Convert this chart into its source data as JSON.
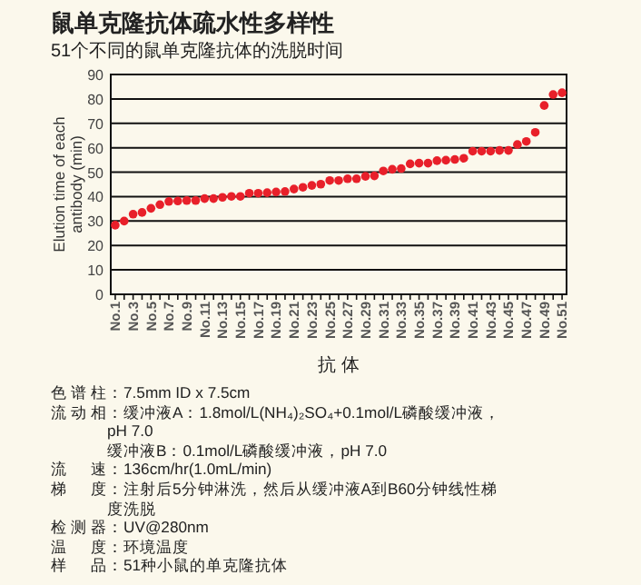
{
  "chart_data": {
    "type": "scatter",
    "title": "鼠单克隆抗体疏水性多样性",
    "subtitle": "51个不同的鼠单克隆抗体的洗脱时间",
    "xlabel": "抗 体",
    "ylabel": "Elution time of each antibody (min)",
    "categories": [
      "No.1",
      null,
      "No.3",
      null,
      "No.5",
      null,
      "No.7",
      null,
      "No.9",
      null,
      "No.11",
      null,
      "No.13",
      null,
      "No.15",
      null,
      "No.17",
      null,
      "No.19",
      null,
      "No.21",
      null,
      "No.23",
      null,
      "No.25",
      null,
      "No.27",
      null,
      "No.29",
      null,
      "No.31",
      null,
      "No.33",
      null,
      "No.35",
      null,
      "No.37",
      null,
      "No.39",
      null,
      "No.41",
      null,
      "No.43",
      null,
      "No.45",
      null,
      "No.47",
      null,
      "No.49",
      null,
      "No.51"
    ],
    "values": [
      28.3,
      30,
      32.8,
      33.5,
      35.2,
      36.7,
      38,
      38.2,
      38.4,
      38.4,
      39.2,
      39.2,
      39.7,
      40.1,
      40.1,
      41.4,
      41.4,
      41.6,
      41.9,
      42.1,
      43.1,
      43.8,
      44.6,
      45.1,
      46.6,
      46.6,
      47.3,
      47.3,
      48.3,
      48.5,
      50.5,
      51.2,
      51.5,
      53.4,
      53.7,
      53.7,
      54.7,
      54.9,
      55.2,
      55.7,
      58.6,
      58.6,
      58.6,
      58.9,
      58.9,
      61.3,
      62.6,
      66.3,
      77.3,
      81.8,
      82.5
    ],
    "color": "#e8202a",
    "marker": "circle",
    "ylim": [
      0,
      90
    ],
    "yticks": [
      0,
      10,
      20,
      30,
      40,
      50,
      60,
      70,
      80,
      90
    ],
    "grid": "y",
    "annotations": [
      "色谱柱：7.5mm ID x 7.5cm",
      "流动相：缓冲液A：1.8mol/L(NH₄)₂SO₄+0.1mol/L磷酸缓冲液，pH 7.0\n缓冲液B：0.1mol/L磷酸缓冲液，pH 7.0",
      "流速：136cm/hr(1.0mL/min)",
      "梯度：注射后5分钟淋洗，然后从缓冲液A到B60分钟线性梯度洗脱",
      "检测器：UV@280nm",
      "温度：环境温度",
      "样品：51种小鼠的单克隆抗体"
    ]
  }
}
